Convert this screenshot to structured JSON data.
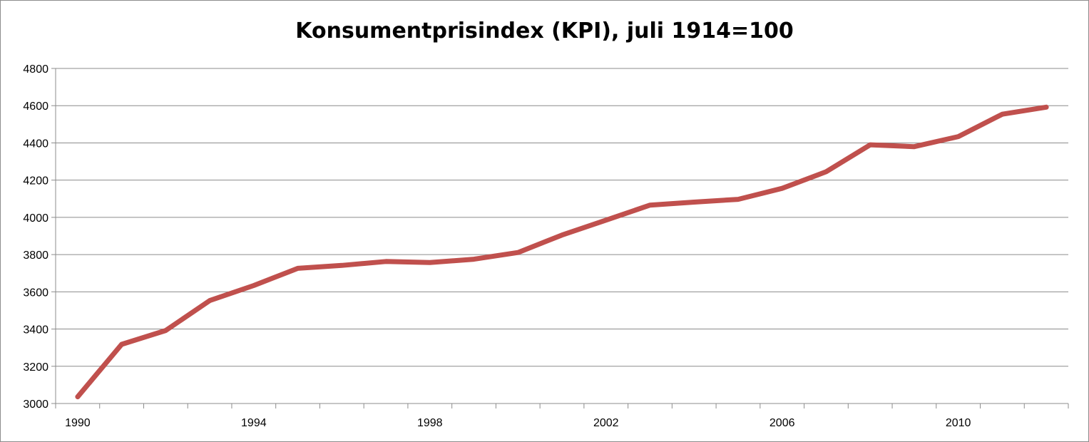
{
  "chart_data": {
    "type": "line",
    "title": "Konsumentprisindex (KPI), juli 1914=100",
    "xlabel": "",
    "ylabel": "",
    "x_tick_labels": [
      "1990",
      "1994",
      "1998",
      "2002",
      "2006",
      "2010"
    ],
    "y_tick_labels": [
      "3000",
      "3200",
      "3400",
      "3600",
      "3800",
      "4000",
      "4200",
      "4400",
      "4600",
      "4800"
    ],
    "ylim": [
      3000,
      4800
    ],
    "xlim": [
      1989.5,
      2012.5
    ],
    "grid": "horizontal",
    "legend": "none",
    "series": [
      {
        "color": "#c0504d",
        "x": [
          1990,
          1991,
          1992,
          1993,
          1994,
          1995,
          1996,
          1997,
          1998,
          1999,
          2000,
          2001,
          2002,
          2003,
          2004,
          2005,
          2006,
          2007,
          2008,
          2009,
          2010,
          2011,
          2012
        ],
        "values": [
          3036,
          3318,
          3392,
          3553,
          3634,
          3726,
          3742,
          3763,
          3757,
          3775,
          3811,
          3905,
          3985,
          4066,
          4082,
          4097,
          4156,
          4245,
          4390,
          4380,
          4434,
          4554,
          4592
        ]
      }
    ]
  }
}
